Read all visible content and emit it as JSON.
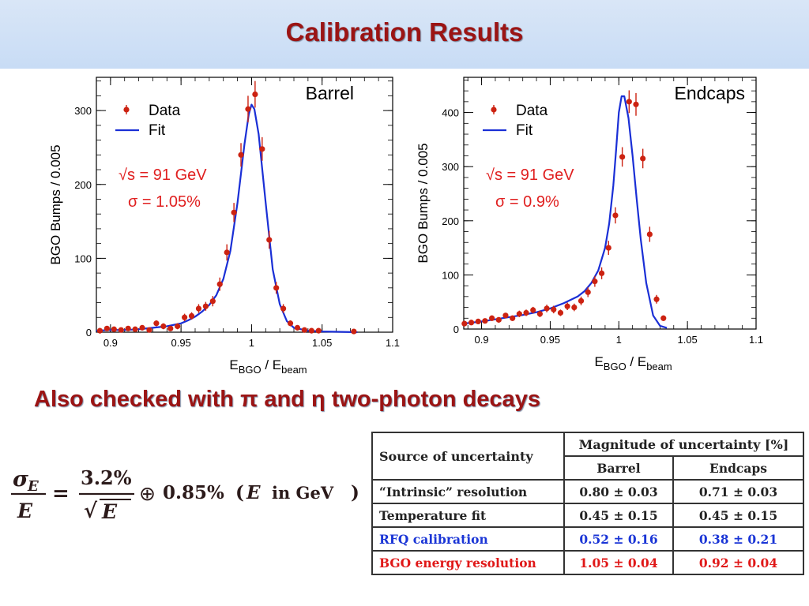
{
  "slide": {
    "title": "Calibration Results",
    "subtitle": "Also checked with π and η two-photon decays"
  },
  "chart_data": [
    {
      "type": "scatter",
      "title": "Barrel",
      "xlabel": "E_BGO / E_beam",
      "ylabel": "BGO Bumps / 0.005",
      "xlim": [
        0.89,
        1.1
      ],
      "ylim": [
        0,
        345
      ],
      "xticks": [
        "0.9",
        "0.95",
        "1",
        "1.05",
        "1.1"
      ],
      "xtick_values": [
        0.9,
        0.95,
        1.0,
        1.05,
        1.1
      ],
      "yticks": [
        "0",
        "100",
        "200",
        "300"
      ],
      "ytick_values": [
        0,
        100,
        200,
        300
      ],
      "legend": {
        "placement": "top-left",
        "entries": [
          "Data",
          "Fit"
        ]
      },
      "annotations": [
        "√s = 91 GeV",
        "σ = 1.05%"
      ],
      "colors": {
        "data": "#cc2211",
        "fit": "#1a2fd6",
        "annotation": "#e02020"
      },
      "series": [
        {
          "name": "Data",
          "x": [
            0.8925,
            0.8975,
            0.9025,
            0.9075,
            0.9125,
            0.9175,
            0.9225,
            0.9275,
            0.9325,
            0.9375,
            0.9425,
            0.9475,
            0.9525,
            0.9575,
            0.9625,
            0.9675,
            0.9725,
            0.9775,
            0.9825,
            0.9875,
            0.9925,
            0.9975,
            1.0025,
            1.0075,
            1.0125,
            1.0175,
            1.0225,
            1.0275,
            1.0325,
            1.0375,
            1.0425,
            1.0475,
            1.0725
          ],
          "y": [
            2,
            5,
            4,
            3,
            5,
            4,
            6,
            3,
            12,
            8,
            5,
            8,
            20,
            22,
            32,
            35,
            42,
            65,
            108,
            162,
            240,
            302,
            322,
            248,
            125,
            60,
            32,
            12,
            6,
            3,
            2,
            2,
            1
          ],
          "err": [
            2,
            3,
            3,
            3,
            3,
            3,
            3,
            3,
            4,
            4,
            3,
            4,
            5,
            5,
            6,
            6,
            7,
            9,
            11,
            13,
            16,
            18,
            18,
            16,
            12,
            8,
            6,
            4,
            3,
            2,
            2,
            2,
            1
          ]
        },
        {
          "name": "Fit",
          "x": [
            0.89,
            0.9,
            0.91,
            0.92,
            0.93,
            0.94,
            0.95,
            0.955,
            0.96,
            0.965,
            0.97,
            0.975,
            0.98,
            0.985,
            0.99,
            0.995,
            0.998,
            1.0,
            1.002,
            1.005,
            1.01,
            1.015,
            1.02,
            1.025,
            1.03,
            1.04,
            1.05,
            1.075
          ],
          "y": [
            2,
            3,
            3,
            4,
            6,
            8,
            12,
            16,
            21,
            28,
            37,
            50,
            72,
            110,
            175,
            255,
            295,
            308,
            302,
            268,
            175,
            85,
            38,
            15,
            6,
            2,
            1,
            0
          ]
        }
      ]
    },
    {
      "type": "scatter",
      "title": "Endcaps",
      "xlabel": "E_BGO / E_beam",
      "ylabel": "BGO Bumps / 0.005",
      "xlim": [
        0.887,
        1.1
      ],
      "ylim": [
        0,
        465
      ],
      "xticks": [
        "0.9",
        "0.95",
        "1",
        "1.05",
        "1.1"
      ],
      "xtick_values": [
        0.9,
        0.95,
        1.0,
        1.05,
        1.1
      ],
      "yticks": [
        "0",
        "100",
        "200",
        "300",
        "400"
      ],
      "ytick_values": [
        0,
        100,
        200,
        300,
        400
      ],
      "legend": {
        "placement": "top-left",
        "entries": [
          "Data",
          "Fit"
        ]
      },
      "annotations": [
        "√s = 91 GeV",
        "σ = 0.9%"
      ],
      "colors": {
        "data": "#cc2211",
        "fit": "#1a2fd6",
        "annotation": "#e02020"
      },
      "series": [
        {
          "name": "Data",
          "x": [
            0.8875,
            0.8925,
            0.8975,
            0.9025,
            0.9075,
            0.9125,
            0.9175,
            0.9225,
            0.9275,
            0.9325,
            0.9375,
            0.9425,
            0.9475,
            0.9525,
            0.9575,
            0.9625,
            0.9675,
            0.9725,
            0.9775,
            0.9825,
            0.9875,
            0.9925,
            0.9975,
            1.0025,
            1.0075,
            1.0125,
            1.0175,
            1.0225,
            1.0275,
            1.0325
          ],
          "y": [
            10,
            12,
            14,
            15,
            20,
            17,
            25,
            20,
            28,
            30,
            35,
            28,
            38,
            36,
            30,
            42,
            40,
            52,
            68,
            88,
            103,
            150,
            210,
            318,
            420,
            415,
            315,
            175,
            55,
            20
          ],
          "err": [
            4,
            4,
            4,
            4,
            5,
            5,
            5,
            5,
            6,
            6,
            6,
            6,
            7,
            7,
            6,
            7,
            7,
            8,
            9,
            10,
            11,
            13,
            15,
            18,
            21,
            21,
            18,
            14,
            8,
            5
          ]
        },
        {
          "name": "Fit",
          "x": [
            0.887,
            0.9,
            0.91,
            0.92,
            0.93,
            0.94,
            0.95,
            0.96,
            0.97,
            0.975,
            0.98,
            0.985,
            0.99,
            0.993,
            0.996,
            0.998,
            1.0,
            1.002,
            1.004,
            1.007,
            1.01,
            1.013,
            1.016,
            1.02,
            1.025,
            1.03,
            1.035
          ],
          "y": [
            10,
            14,
            18,
            22,
            26,
            31,
            38,
            48,
            60,
            70,
            85,
            108,
            150,
            195,
            265,
            330,
            400,
            430,
            430,
            390,
            320,
            240,
            165,
            85,
            25,
            6,
            2
          ]
        }
      ]
    }
  ],
  "formula": {
    "sigma": "σ",
    "sub": "E",
    "den": "E",
    "eq": "=",
    "num2": "3.2%",
    "sqrt": "√",
    "den2": "E",
    "oplus": "⊕",
    "term": "0.85%",
    "lparen": "(",
    "var": "E",
    "unit": "in GeV",
    "rparen": ")"
  },
  "table": {
    "source_header": "Source of uncertainty",
    "magnitude_header": "Magnitude of uncertainty [%]",
    "barrel_header": "Barrel",
    "endcaps_header": "Endcaps",
    "rows": [
      {
        "source": "“Intrinsic” resolution",
        "barrel": "0.80 ± 0.03",
        "endcaps": "0.71 ± 0.03",
        "color": "#222222"
      },
      {
        "source": "Temperature fit",
        "barrel": "0.45 ± 0.15",
        "endcaps": "0.45 ± 0.15",
        "color": "#222222"
      },
      {
        "source": "RFQ calibration",
        "barrel": "0.52 ± 0.16",
        "endcaps": "0.38 ± 0.21",
        "color": "#1a35d6"
      },
      {
        "source": "BGO energy resolution",
        "barrel": "1.05 ± 0.04",
        "endcaps": "0.92 ± 0.04",
        "color": "#e01818"
      }
    ]
  }
}
